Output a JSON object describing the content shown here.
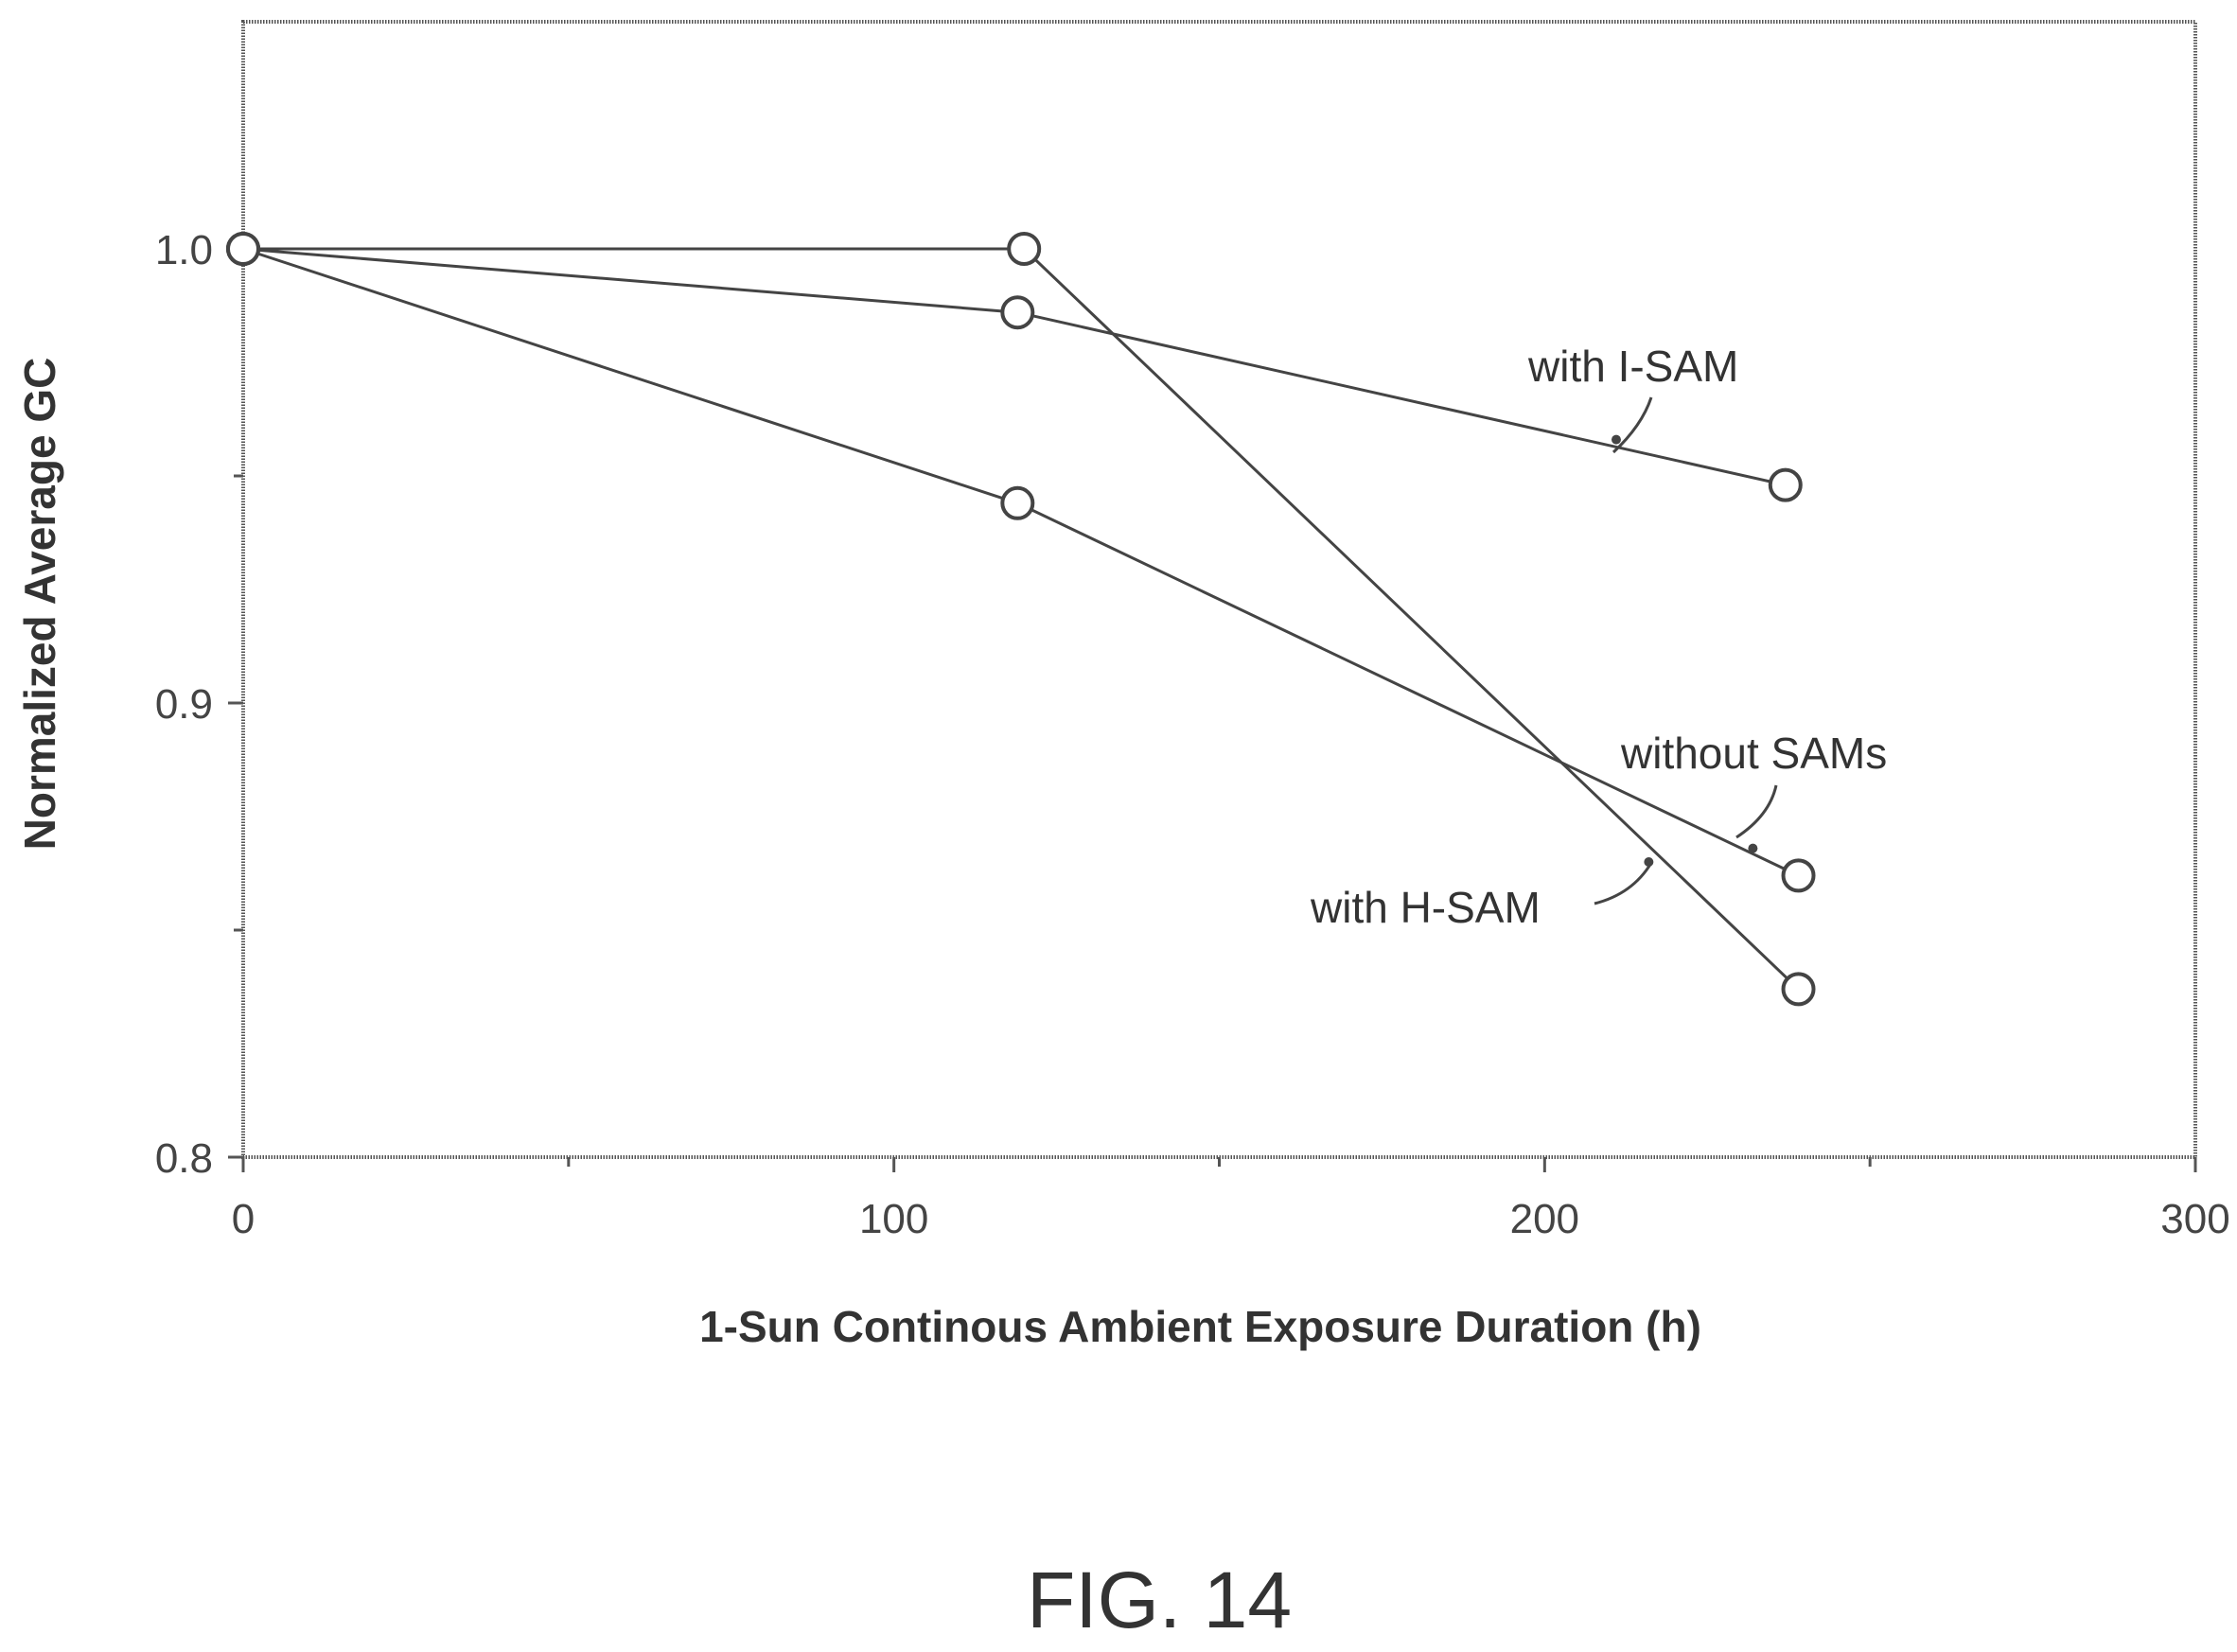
{
  "chart_data": {
    "type": "line",
    "xlabel": "1-Sun Continous Ambient Exposure Duration (h)",
    "ylabel": "Normalized Average GC",
    "xlim": [
      0,
      300
    ],
    "ylim": [
      0.8,
      1.05
    ],
    "x_ticks": [
      0,
      100,
      200,
      300
    ],
    "x_tick_labels": [
      "0",
      "100",
      "200",
      "300"
    ],
    "x_minor_ticks": [
      50,
      150,
      250
    ],
    "y_ticks": [
      0.8,
      0.9,
      1.0
    ],
    "y_tick_labels": [
      "0.8",
      "0.9",
      "1.0"
    ],
    "y_minor_ticks": [
      0.85,
      0.95
    ],
    "grid": false,
    "marker": "open-circle",
    "series": [
      {
        "name": "with I-SAM",
        "x": [
          0,
          119,
          237
        ],
        "y": [
          1.0,
          0.986,
          0.948
        ]
      },
      {
        "name": "without SAMs",
        "x": [
          0,
          119,
          239
        ],
        "y": [
          1.0,
          0.944,
          0.862
        ]
      },
      {
        "name": "with H-SAM",
        "x": [
          0,
          120,
          239
        ],
        "y": [
          1.0,
          1.0,
          0.837
        ]
      }
    ],
    "annotations": [
      {
        "text": "with I-SAM",
        "series": "with I-SAM",
        "at_x": 211,
        "at_y": 0.958
      },
      {
        "text": "without SAMs",
        "series": "without SAMs",
        "at_x": 232,
        "at_y": 0.868
      },
      {
        "text": "with H-SAM",
        "series": "with H-SAM",
        "at_x": 216,
        "at_y": 0.865
      }
    ]
  },
  "figure_label": "FIG. 14"
}
